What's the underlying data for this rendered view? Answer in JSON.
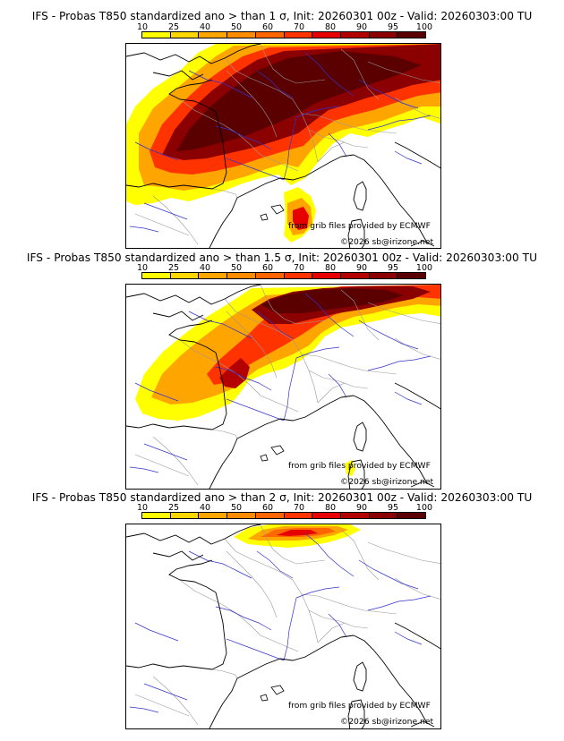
{
  "panels": [
    {
      "title": "IFS - Probas T850  standardized ano > than 1 σ, Init: 20260301 00z - Valid: 20260303:00 TU",
      "source_credit": "from grib files provided by ECMWF",
      "copyright": "©2026 sb@irizone.net",
      "probability_extent": "high"
    },
    {
      "title": "IFS - Probas T850  standardized ano > than 1.5 σ, Init: 20260301 00z - Valid: 20260303:00 TU",
      "source_credit": "from grib files provided by ECMWF",
      "copyright": "©2026 sb@irizone.net",
      "probability_extent": "medium"
    },
    {
      "title": "IFS - Probas T850  standardized ano > than 2 σ, Init: 20260301 00z - Valid: 20260303:00 TU",
      "source_credit": "from grib files provided by ECMWF",
      "copyright": "©2026 sb@irizone.net",
      "probability_extent": "low"
    }
  ],
  "colorbar": {
    "labels": [
      "10",
      "25",
      "40",
      "50",
      "60",
      "70",
      "80",
      "90",
      "95",
      "100"
    ],
    "colors": [
      "#ffff00",
      "#ffd700",
      "#ffa500",
      "#ff8c00",
      "#ff6600",
      "#ff3300",
      "#e60000",
      "#b30000",
      "#8b0000",
      "#5a0000"
    ]
  },
  "map_colors": {
    "land_outline": "#000000",
    "borders": "#999999",
    "rivers": "#3333cc"
  }
}
